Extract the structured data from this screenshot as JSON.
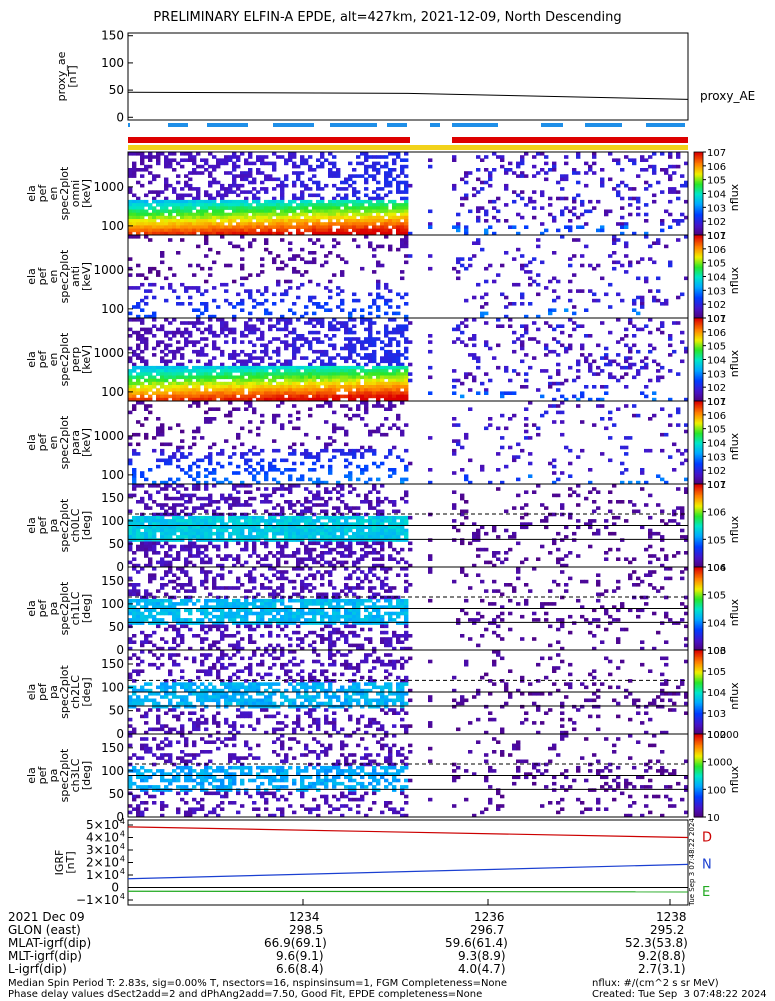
{
  "title": "PRELIMINARY ELFIN-A EPDE, alt=427km, 2021-12-09, North Descending",
  "chart_data": [
    {
      "type": "line",
      "ylabel": [
        "proxy_ae",
        "[nT]"
      ],
      "series": [
        {
          "name": "proxy_AE",
          "x": [
            0,
            0.5,
            1
          ],
          "values": [
            46,
            44,
            33
          ]
        }
      ],
      "ylim": [
        -5,
        155
      ],
      "yticks": [
        "150",
        "100",
        "50",
        "0"
      ]
    },
    {
      "type": "heatmap",
      "ylabel": [
        "ela",
        "pef",
        "en",
        "spec2plot",
        "omni",
        "[keV]"
      ],
      "yticks": [
        "1000",
        "100"
      ],
      "colorbar": {
        "label": "nflux",
        "ticks": [
          "10^7",
          "10^6",
          "10^5",
          "10^4",
          "10^3",
          "10^2",
          "10^1"
        ]
      }
    },
    {
      "type": "heatmap",
      "ylabel": [
        "ela",
        "pef",
        "en",
        "spec2plot",
        "anti",
        "[keV]"
      ],
      "yticks": [
        "1000",
        "100"
      ],
      "colorbar": {
        "label": "nflux",
        "ticks": [
          "10^7",
          "10^6",
          "10^5",
          "10^4",
          "10^3",
          "10^2",
          "10^1"
        ]
      }
    },
    {
      "type": "heatmap",
      "ylabel": [
        "ela",
        "pef",
        "en",
        "spec2plot",
        "perp",
        "[keV]"
      ],
      "yticks": [
        "1000",
        "100"
      ],
      "colorbar": {
        "label": "nflux",
        "ticks": [
          "10^7",
          "10^6",
          "10^5",
          "10^4",
          "10^3",
          "10^2",
          "10^1"
        ]
      }
    },
    {
      "type": "heatmap",
      "ylabel": [
        "ela",
        "pef",
        "en",
        "spec2plot",
        "para",
        "[keV]"
      ],
      "yticks": [
        "1000",
        "100"
      ],
      "colorbar": {
        "label": "nflux",
        "ticks": [
          "10^7",
          "10^6",
          "10^5",
          "10^4",
          "10^3",
          "10^2",
          "10^1"
        ]
      }
    },
    {
      "type": "heatmap",
      "ylabel": [
        "ela",
        "pef",
        "pa",
        "spec2plot",
        "ch0LC",
        "[deg]"
      ],
      "yticks": [
        "150",
        "100",
        "50",
        "0"
      ],
      "colorbar": {
        "label": "nflux",
        "ticks": [
          "10^7",
          "10^6",
          "10^5",
          "10^4"
        ]
      }
    },
    {
      "type": "heatmap",
      "ylabel": [
        "ela",
        "pef",
        "pa",
        "spec2plot",
        "ch1LC",
        "[deg]"
      ],
      "yticks": [
        "150",
        "100",
        "50",
        "0"
      ],
      "colorbar": {
        "label": "nflux",
        "ticks": [
          "10^6",
          "10^5",
          "10^4",
          "10^3"
        ]
      }
    },
    {
      "type": "heatmap",
      "ylabel": [
        "ela",
        "pef",
        "pa",
        "spec2plot",
        "ch2LC",
        "[deg]"
      ],
      "yticks": [
        "150",
        "100",
        "50",
        "0"
      ],
      "colorbar": {
        "label": "nflux",
        "ticks": [
          "10^6",
          "10^5",
          "10^4",
          "10^3",
          "10^2"
        ]
      }
    },
    {
      "type": "heatmap",
      "ylabel": [
        "ela",
        "pef",
        "pa",
        "spec2plot",
        "ch3LC",
        "[deg]"
      ],
      "yticks": [
        "150",
        "100",
        "50",
        "0"
      ],
      "colorbar": {
        "label": "nflux",
        "ticks": [
          "10000",
          "1000",
          "100",
          "10"
        ]
      }
    },
    {
      "type": "line",
      "ylabel": [
        "IGRF",
        "[nT]"
      ],
      "yticks": [
        "5×10^4",
        "4×10^4",
        "3×10^4",
        "2×10^4",
        "1×10^4",
        "0",
        "−1×10^4"
      ],
      "series": [
        {
          "name": "D",
          "x": [
            0,
            1
          ],
          "values": [
            48500,
            40000
          ],
          "color": "#cc0000"
        },
        {
          "name": "N",
          "x": [
            0,
            1
          ],
          "values": [
            7000,
            18500
          ],
          "color": "#1a3fd1"
        },
        {
          "name": "E",
          "x": [
            0,
            1
          ],
          "values": [
            -3000,
            -3500
          ],
          "color": "#22aa22"
        }
      ],
      "ylim": [
        -14000,
        54000
      ]
    }
  ],
  "xaxis": {
    "date": "2021 Dec 09",
    "ticks": [
      "1234",
      "1236",
      "1238"
    ],
    "rows": [
      {
        "label": "GLON (east)",
        "values": [
          "298.5",
          "296.7",
          "295.2"
        ]
      },
      {
        "label": "MLAT-igrf(dip)",
        "values": [
          "66.9(69.1)",
          "59.6(61.4)",
          "52.3(53.8)"
        ]
      },
      {
        "label": "MLT-igrf(dip)",
        "values": [
          "9.6(9.1)",
          "9.3(8.9)",
          "9.2(8.8)"
        ]
      },
      {
        "label": "L-igrf(dip)",
        "values": [
          "6.6(8.4)",
          "4.0(4.7)",
          "2.7(3.1)"
        ]
      }
    ]
  },
  "footer": {
    "left1": "Median Spin Period T: 2.83s, sig=0.00% T, nsectors=16, nspinsinsum=1, FGM Completeness=None",
    "left2": "Phase delay values dSect2add=2 and dPhAng2add=7.50, Good Fit, EPDE completeness=None",
    "right1": "nflux: #/(cm^2 s sr MeV)",
    "right2": "Created: Tue Sep  3 07:48:22 2024",
    "stamp": "Tue Sep  3 07:48:22 2024"
  },
  "colors": {
    "red_bar": "#dd0000",
    "yellow_bar": "#f2d21a",
    "blue_bar": "#1f8fe8"
  }
}
